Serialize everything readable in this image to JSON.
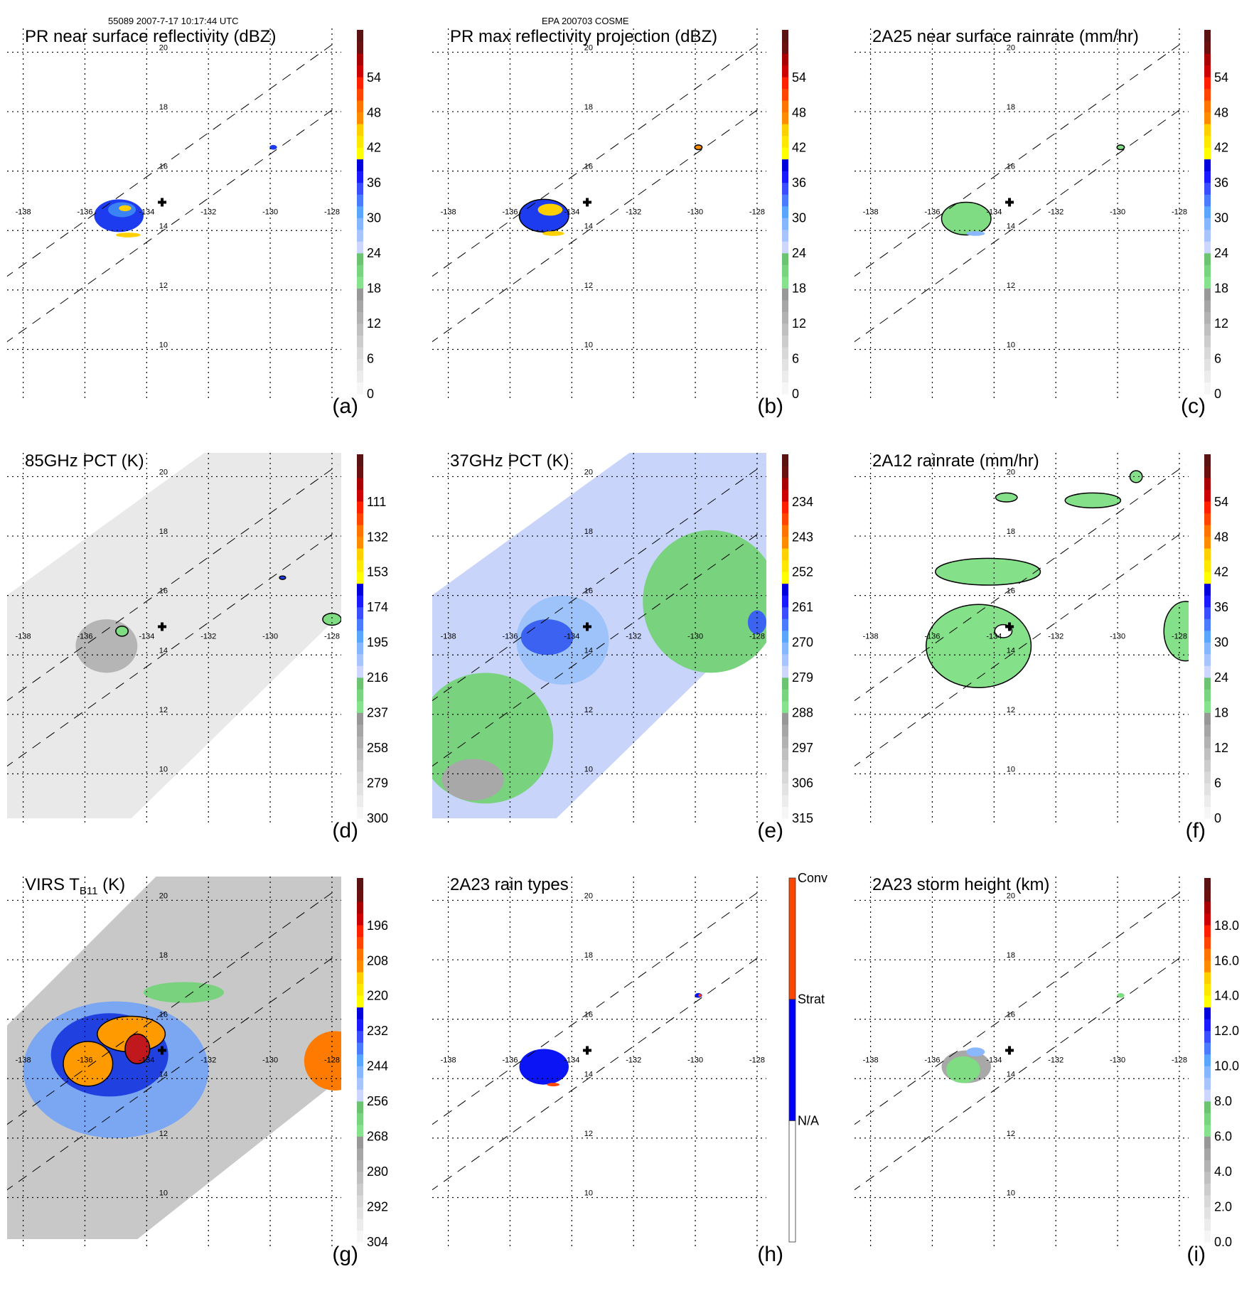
{
  "header": {
    "orbit_time": "55089 2007-7-17 10:17:44 UTC",
    "storm": "EPA 200703 COSME"
  },
  "chart_data": [
    {
      "id": "a",
      "type": "heatmap",
      "label": "(a)",
      "title": "PR near surface reflectivity (dBZ)",
      "colorbar": {
        "ticks": [
          "0",
          "6",
          "12",
          "18",
          "24",
          "30",
          "36",
          "42",
          "48",
          "54"
        ],
        "range": [
          0,
          60
        ]
      },
      "coverage": "pr",
      "features": [
        {
          "kind": "echo",
          "lon": -134.9,
          "lat": 14.5,
          "rx": 0.8,
          "ry": 0.55,
          "color": "#1d3cf0"
        },
        {
          "kind": "echo",
          "lon": -134.8,
          "lat": 14.7,
          "rx": 0.45,
          "ry": 0.25,
          "color": "#3b82f6"
        },
        {
          "kind": "echo",
          "lon": -134.6,
          "lat": 13.85,
          "rx": 0.4,
          "ry": 0.08,
          "color": "#ffd000"
        },
        {
          "kind": "echo",
          "lon": -134.7,
          "lat": 14.75,
          "rx": 0.2,
          "ry": 0.1,
          "color": "#ffd000"
        },
        {
          "kind": "echo",
          "lon": -129.9,
          "lat": 16.8,
          "rx": 0.12,
          "ry": 0.08,
          "color": "#1d3cf0"
        }
      ]
    },
    {
      "id": "b",
      "type": "heatmap",
      "label": "(b)",
      "title": "PR max reflectivity projection (dBZ)",
      "colorbar": {
        "ticks": [
          "0",
          "6",
          "12",
          "18",
          "24",
          "30",
          "36",
          "42",
          "48",
          "54"
        ],
        "range": [
          0,
          60
        ]
      },
      "coverage": "pr",
      "features": [
        {
          "kind": "echo",
          "lon": -134.9,
          "lat": 14.5,
          "rx": 0.8,
          "ry": 0.55,
          "color": "#1d3cf0",
          "outline": true
        },
        {
          "kind": "echo",
          "lon": -134.7,
          "lat": 14.7,
          "rx": 0.4,
          "ry": 0.2,
          "color": "#ffd000"
        },
        {
          "kind": "echo",
          "lon": -134.6,
          "lat": 13.9,
          "rx": 0.35,
          "ry": 0.08,
          "color": "#ffd000"
        },
        {
          "kind": "echo",
          "lon": -129.9,
          "lat": 16.8,
          "rx": 0.12,
          "ry": 0.08,
          "color": "#ff8c00",
          "outline": true
        }
      ]
    },
    {
      "id": "c",
      "type": "heatmap",
      "label": "(c)",
      "title": "2A25 near surface rainrate (mm/hr)",
      "colorbar": {
        "ticks": [
          "0",
          "6",
          "12",
          "18",
          "24",
          "30",
          "36",
          "42",
          "48",
          "54"
        ],
        "range": [
          0,
          60
        ]
      },
      "coverage": "pr",
      "features": [
        {
          "kind": "echo",
          "lon": -134.9,
          "lat": 14.4,
          "rx": 0.8,
          "ry": 0.55,
          "color": "#7fdc83",
          "outline": true
        },
        {
          "kind": "echo",
          "lon": -134.6,
          "lat": 13.9,
          "rx": 0.3,
          "ry": 0.08,
          "color": "#8ab8ff"
        },
        {
          "kind": "echo",
          "lon": -129.9,
          "lat": 16.8,
          "rx": 0.12,
          "ry": 0.08,
          "color": "#7fdc83",
          "outline": true
        }
      ]
    },
    {
      "id": "d",
      "type": "heatmap",
      "label": "(d)",
      "title": "85GHz PCT (K)",
      "colorbar": {
        "ticks": [
          "300",
          "279",
          "258",
          "237",
          "216",
          "195",
          "174",
          "153",
          "132",
          "111"
        ],
        "range": [
          300,
          90
        ]
      },
      "coverage": "tmi",
      "background": "#e9e9e9",
      "features": [
        {
          "kind": "echo",
          "lon": -135.3,
          "lat": 14.3,
          "rx": 1.0,
          "ry": 0.9,
          "color": "#b5b5b5"
        },
        {
          "kind": "echo",
          "lon": -134.8,
          "lat": 14.8,
          "rx": 0.2,
          "ry": 0.17,
          "color": "#7fdc83",
          "outline": true
        },
        {
          "kind": "echo",
          "lon": -128.0,
          "lat": 15.2,
          "rx": 0.3,
          "ry": 0.2,
          "color": "#7fdc83",
          "outline": true
        },
        {
          "kind": "echo",
          "lon": -129.6,
          "lat": 16.6,
          "rx": 0.1,
          "ry": 0.06,
          "color": "#1d3cf0",
          "outline": true
        }
      ]
    },
    {
      "id": "e",
      "type": "heatmap",
      "label": "(e)",
      "title": "37GHz PCT (K)",
      "colorbar": {
        "ticks": [
          "315",
          "306",
          "297",
          "288",
          "279",
          "270",
          "261",
          "252",
          "243",
          "234"
        ],
        "range": [
          315,
          225
        ]
      },
      "coverage": "tmi",
      "background": "#c9d4fb",
      "features": [
        {
          "kind": "echo",
          "lon": -136.8,
          "lat": 11.2,
          "rx": 2.2,
          "ry": 2.2,
          "color": "#79d27e"
        },
        {
          "kind": "echo",
          "lon": -129.5,
          "lat": 15.8,
          "rx": 2.2,
          "ry": 2.4,
          "color": "#79d27e"
        },
        {
          "kind": "echo",
          "lon": -134.3,
          "lat": 14.5,
          "rx": 1.5,
          "ry": 1.5,
          "color": "#9ec3fb"
        },
        {
          "kind": "echo",
          "lon": -134.8,
          "lat": 14.6,
          "rx": 0.85,
          "ry": 0.6,
          "color": "#3b62f0"
        },
        {
          "kind": "echo",
          "lon": -137.2,
          "lat": 9.8,
          "rx": 1.0,
          "ry": 0.7,
          "color": "#a8a8a8"
        },
        {
          "kind": "echo",
          "lon": -128.0,
          "lat": 15.1,
          "rx": 0.3,
          "ry": 0.4,
          "color": "#3b62f0"
        }
      ]
    },
    {
      "id": "f",
      "type": "heatmap",
      "label": "(f)",
      "title": "2A12 rainrate (mm/hr)",
      "colorbar": {
        "ticks": [
          "0",
          "6",
          "12",
          "18",
          "24",
          "30",
          "36",
          "42",
          "48",
          "54"
        ],
        "range": [
          0,
          60
        ]
      },
      "coverage": "tmi",
      "features": [
        {
          "kind": "echo",
          "lon": -134.5,
          "lat": 14.3,
          "rx": 1.7,
          "ry": 1.4,
          "color": "#85e08a",
          "outline": true
        },
        {
          "kind": "echo",
          "lon": -134.2,
          "lat": 16.8,
          "rx": 1.7,
          "ry": 0.45,
          "color": "#85e08a",
          "outline": true
        },
        {
          "kind": "echo",
          "lon": -127.8,
          "lat": 14.8,
          "rx": 0.7,
          "ry": 1.0,
          "color": "#85e08a",
          "outline": true
        },
        {
          "kind": "echo",
          "lon": -130.8,
          "lat": 19.2,
          "rx": 0.9,
          "ry": 0.25,
          "color": "#85e08a",
          "outline": true
        },
        {
          "kind": "echo",
          "lon": -133.6,
          "lat": 19.3,
          "rx": 0.35,
          "ry": 0.15,
          "color": "#85e08a",
          "outline": true
        },
        {
          "kind": "echo",
          "lon": -129.4,
          "lat": 20.0,
          "rx": 0.2,
          "ry": 0.2,
          "color": "#85e08a",
          "outline": true
        },
        {
          "kind": "echo",
          "lon": -133.7,
          "lat": 14.8,
          "rx": 0.28,
          "ry": 0.22,
          "color": "#ffffff",
          "outline": true
        }
      ]
    },
    {
      "id": "g",
      "type": "heatmap",
      "label": "(g)",
      "title": "VIRS T",
      "title_sub": "B11",
      "title_unit": " (K)",
      "colorbar": {
        "ticks": [
          "304",
          "292",
          "280",
          "268",
          "256",
          "244",
          "232",
          "220",
          "208",
          "196"
        ],
        "range": [
          304,
          184
        ]
      },
      "coverage": "virs",
      "background": "#c8c8c8",
      "features": [
        {
          "kind": "echo",
          "lon": -135.0,
          "lat": 14.3,
          "rx": 3.0,
          "ry": 2.3,
          "color": "#7aa6f2"
        },
        {
          "kind": "echo",
          "lon": -135.2,
          "lat": 14.8,
          "rx": 1.9,
          "ry": 1.4,
          "color": "#2040e0"
        },
        {
          "kind": "echo",
          "lon": -134.5,
          "lat": 15.5,
          "rx": 1.1,
          "ry": 0.6,
          "color": "#ff9a00",
          "outline": true
        },
        {
          "kind": "echo",
          "lon": -135.9,
          "lat": 14.5,
          "rx": 0.8,
          "ry": 0.75,
          "color": "#ff9a00",
          "outline": true
        },
        {
          "kind": "echo",
          "lon": -134.3,
          "lat": 15.0,
          "rx": 0.4,
          "ry": 0.5,
          "color": "#c0181c",
          "outline": true
        },
        {
          "kind": "echo",
          "lon": -127.9,
          "lat": 14.6,
          "rx": 1.0,
          "ry": 1.0,
          "color": "#ff7a00"
        },
        {
          "kind": "echo",
          "lon": -132.8,
          "lat": 16.9,
          "rx": 1.3,
          "ry": 0.35,
          "color": "#79d27e"
        }
      ]
    },
    {
      "id": "h",
      "type": "heatmap",
      "label": "(h)",
      "title": "2A23 rain types",
      "colorbar": {
        "ticks": [
          "N/A",
          "Strat",
          "Conv"
        ],
        "categories": [
          {
            "name": "N/A",
            "color": "#ffffff"
          },
          {
            "name": "Strat",
            "color": "#0000ff"
          },
          {
            "name": "Conv",
            "color": "#ff4500"
          }
        ]
      },
      "coverage": "pr",
      "features": [
        {
          "kind": "echo",
          "lon": -134.9,
          "lat": 14.4,
          "rx": 0.8,
          "ry": 0.6,
          "color": "#0a14f5"
        },
        {
          "kind": "echo",
          "lon": -134.6,
          "lat": 13.8,
          "rx": 0.2,
          "ry": 0.06,
          "color": "#ff4500"
        },
        {
          "kind": "echo",
          "lon": -129.9,
          "lat": 16.8,
          "rx": 0.12,
          "ry": 0.08,
          "color": "#0a14f5"
        },
        {
          "kind": "echo",
          "lon": -129.85,
          "lat": 16.8,
          "rx": 0.05,
          "ry": 0.05,
          "color": "#ff4500"
        }
      ]
    },
    {
      "id": "i",
      "type": "heatmap",
      "label": "(i)",
      "title": "2A23 storm height (km)",
      "colorbar": {
        "ticks": [
          "0.0",
          "2.0",
          "4.0",
          "6.0",
          "8.0",
          "10.0",
          "12.0",
          "14.0",
          "16.0",
          "18.0"
        ],
        "range": [
          0,
          20
        ]
      },
      "coverage": "pr",
      "features": [
        {
          "kind": "echo",
          "lon": -134.9,
          "lat": 14.4,
          "rx": 0.8,
          "ry": 0.55,
          "color": "#a8a8a8"
        },
        {
          "kind": "echo",
          "lon": -135.0,
          "lat": 14.3,
          "rx": 0.55,
          "ry": 0.45,
          "color": "#7fdc83"
        },
        {
          "kind": "echo",
          "lon": -134.6,
          "lat": 14.9,
          "rx": 0.3,
          "ry": 0.15,
          "color": "#8ab8ff"
        },
        {
          "kind": "echo",
          "lon": -129.9,
          "lat": 16.8,
          "rx": 0.12,
          "ry": 0.08,
          "color": "#7fdc83"
        }
      ]
    }
  ],
  "map": {
    "lon_ticks": [
      "-138",
      "-136",
      "-134",
      "-132",
      "-130",
      "-128"
    ],
    "lat_ticks": [
      "10",
      "12",
      "14",
      "16",
      "18",
      "20"
    ],
    "storm_center": {
      "lon": -133.5,
      "lat": 14.95,
      "symbol": "+"
    }
  },
  "colorbar_palette": [
    "#f6f6f6",
    "#ececec",
    "#e2e2e2",
    "#d8d8d8",
    "#cccccc",
    "#c0c0c0",
    "#b2b2b2",
    "#a6a6a6",
    "#989898",
    "#86e28c",
    "#78d47e",
    "#6cc472",
    "#cdd6ff",
    "#a8c4ff",
    "#86b6ff",
    "#5aa6ff",
    "#4b7cff",
    "#3a4eff",
    "#1a1aff",
    "#0000dd",
    "#ffff00",
    "#ffe800",
    "#ffd000",
    "#ff8c00",
    "#ff7400",
    "#ff4500",
    "#ff2000",
    "#cc0000",
    "#a80000",
    "#6a1010",
    "#5a1212"
  ]
}
